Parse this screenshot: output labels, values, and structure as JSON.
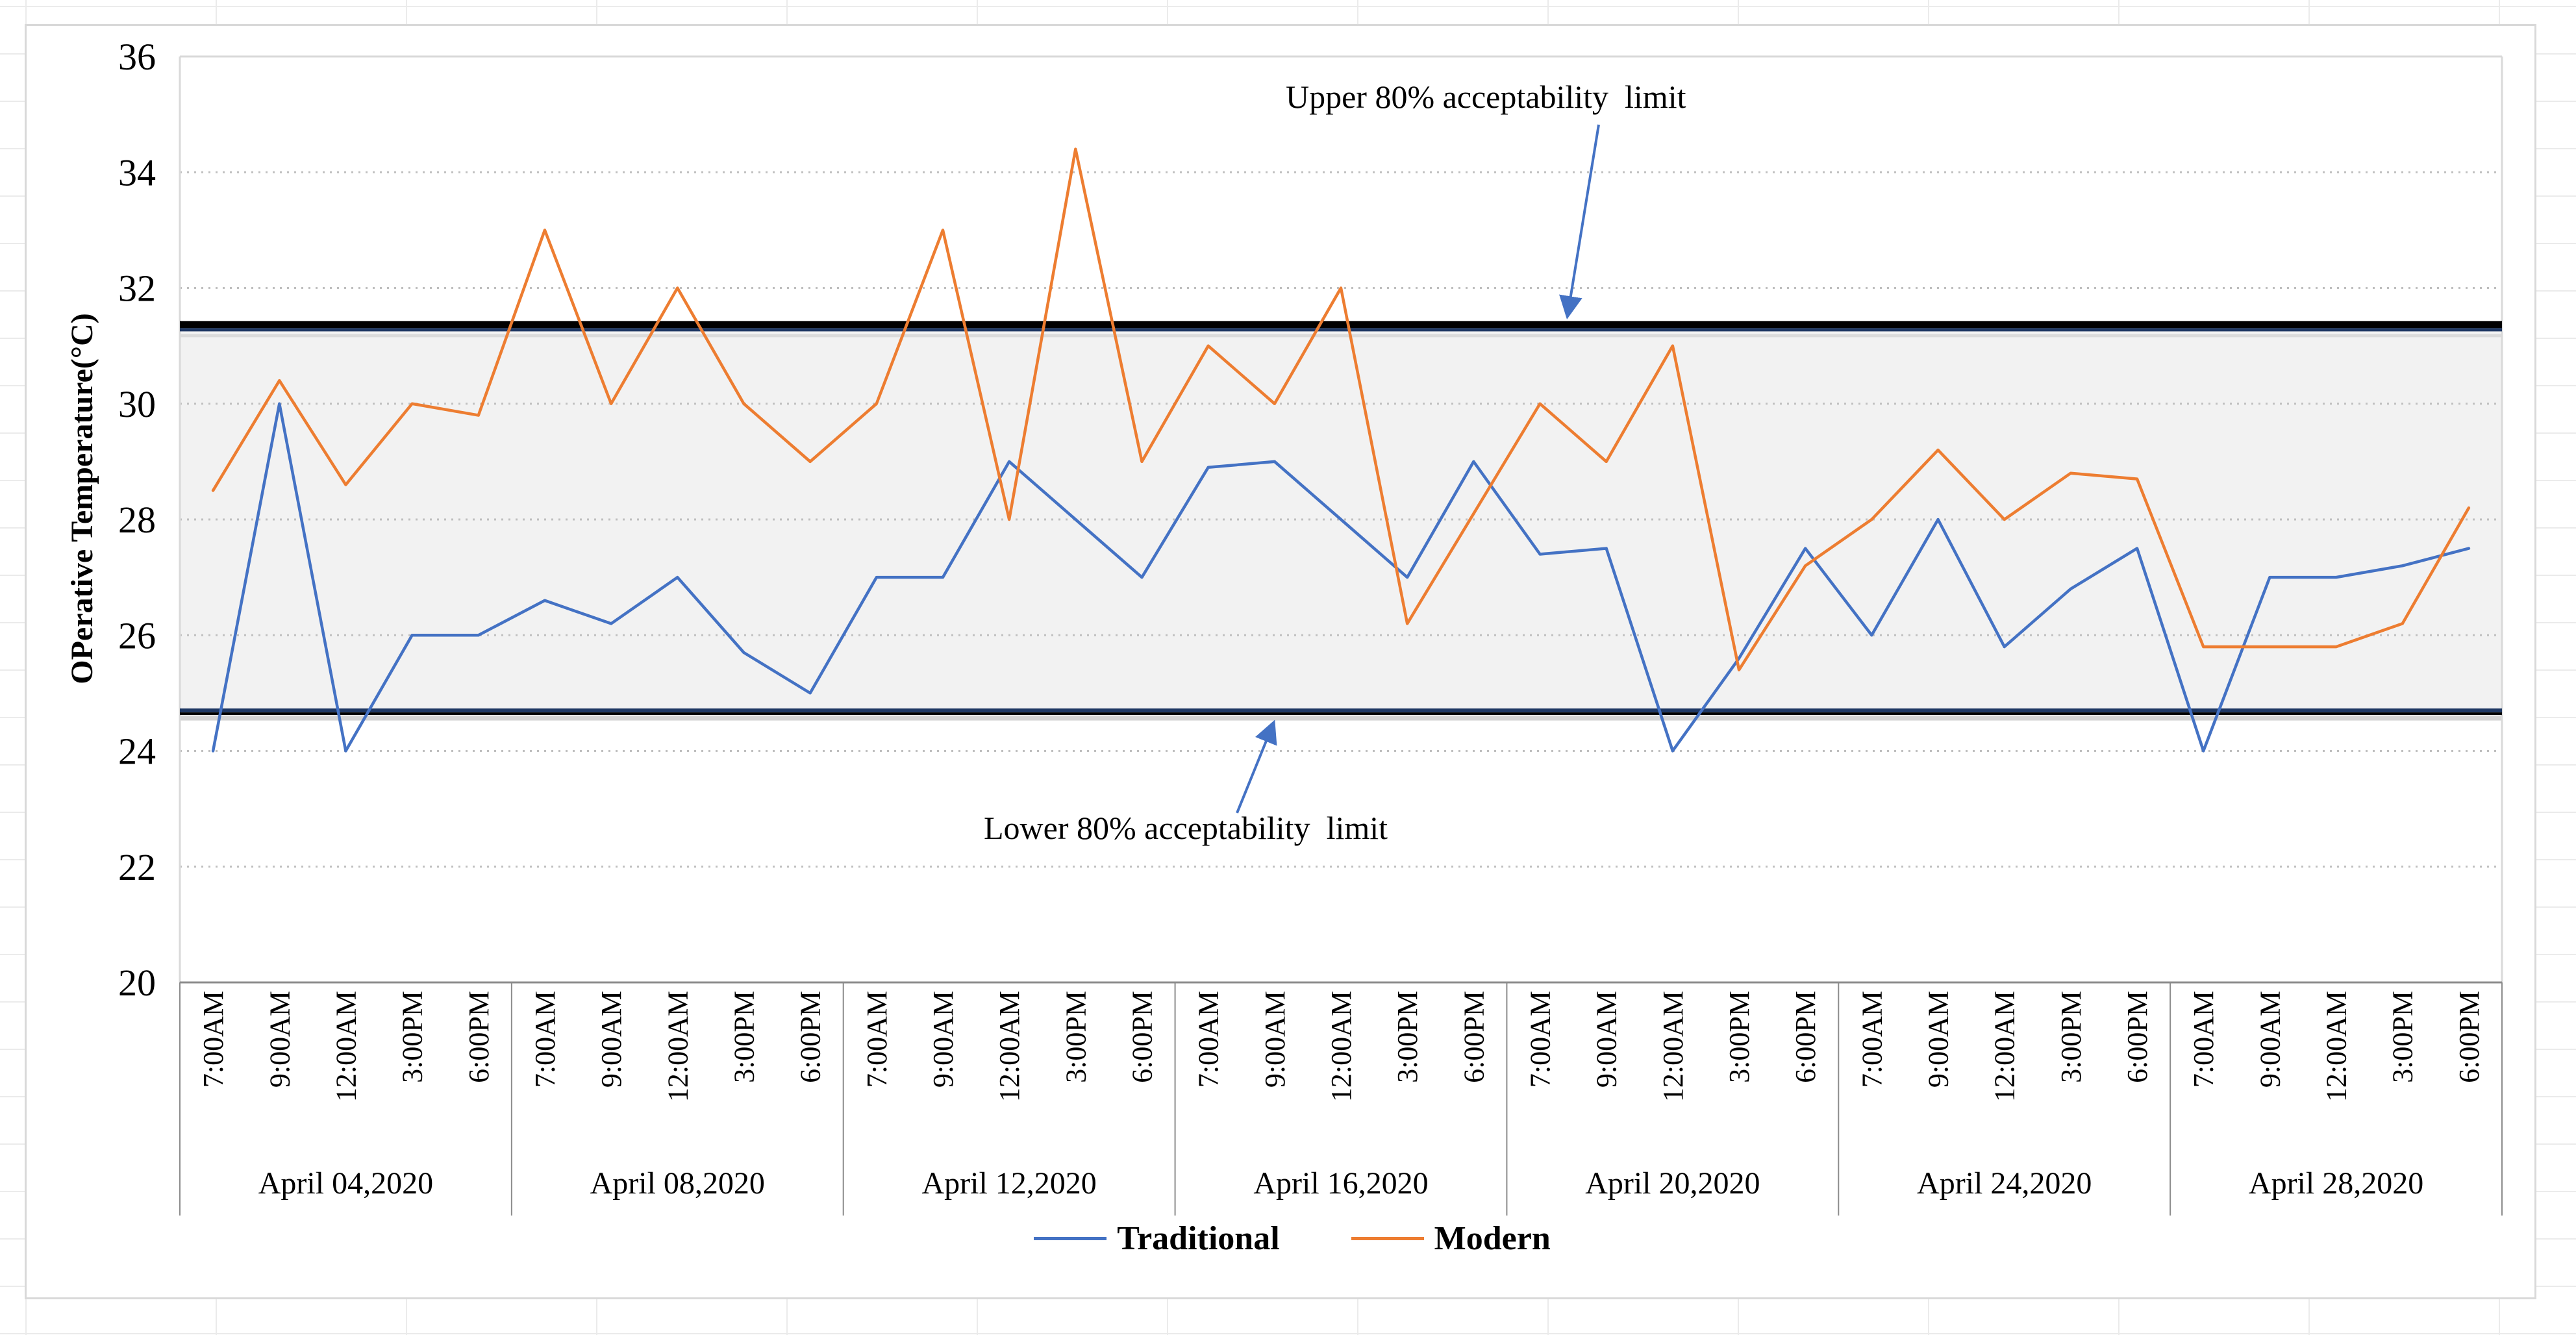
{
  "chart_data": {
    "type": "line",
    "title": "",
    "ylabel": "OPerative Temperature(°C)",
    "ylim": [
      20,
      36
    ],
    "yticks": [
      20,
      22,
      24,
      26,
      28,
      30,
      32,
      34,
      36
    ],
    "grid": "dotted-horizontal",
    "legend_position": "bottom",
    "date_groups": [
      "April 04,2020",
      "April 08,2020",
      "April 12,2020",
      "April 16,2020",
      "April 20,2020",
      "April 24,2020",
      "April 28,2020"
    ],
    "time_labels_per_group": [
      "7:00AM",
      "9:00AM",
      "12:00AM",
      "3:00PM",
      "6:00PM"
    ],
    "series": [
      {
        "name": "Traditional",
        "color": "#4472C4",
        "values": [
          24,
          30,
          24,
          26,
          26,
          26.6,
          26.2,
          27,
          25.7,
          25,
          27,
          27,
          29,
          28,
          27,
          28.9,
          29,
          28,
          27,
          29,
          27.4,
          27.5,
          24,
          25.6,
          27.5,
          26,
          28,
          25.8,
          26.8,
          27.5,
          24,
          27,
          27,
          27.2,
          27.5
        ]
      },
      {
        "name": "Modern",
        "color": "#ED7D31",
        "values": [
          28.5,
          30.4,
          28.6,
          30,
          29.8,
          33,
          30,
          32,
          30,
          29,
          30,
          33,
          28,
          34.4,
          29,
          31,
          30,
          32,
          26.2,
          28.1,
          30,
          29,
          31,
          25.4,
          27.2,
          28,
          29.2,
          28,
          28.8,
          28.7,
          25.8,
          25.8,
          25.8,
          26.2,
          28.2
        ]
      }
    ],
    "upper_limit": {
      "value": 31.3,
      "label": "Upper 80% acceptability  limit"
    },
    "lower_limit": {
      "value": 24.7,
      "label": "Lower 80% acceptability  limit"
    },
    "band_fill": "#F2F2F2",
    "colors": {
      "limit_border": "#1F3864",
      "upper_line": "#000000",
      "gridline": "#BFBFBF",
      "axis": "#8C8C8C",
      "plot_border": "#D9D9D9",
      "arrow": "#4472C4",
      "shadow": "#C9C9C9"
    }
  },
  "legend": {
    "items": [
      {
        "label": "Traditional",
        "color": "#4472C4"
      },
      {
        "label": "Modern",
        "color": "#ED7D31"
      }
    ]
  }
}
